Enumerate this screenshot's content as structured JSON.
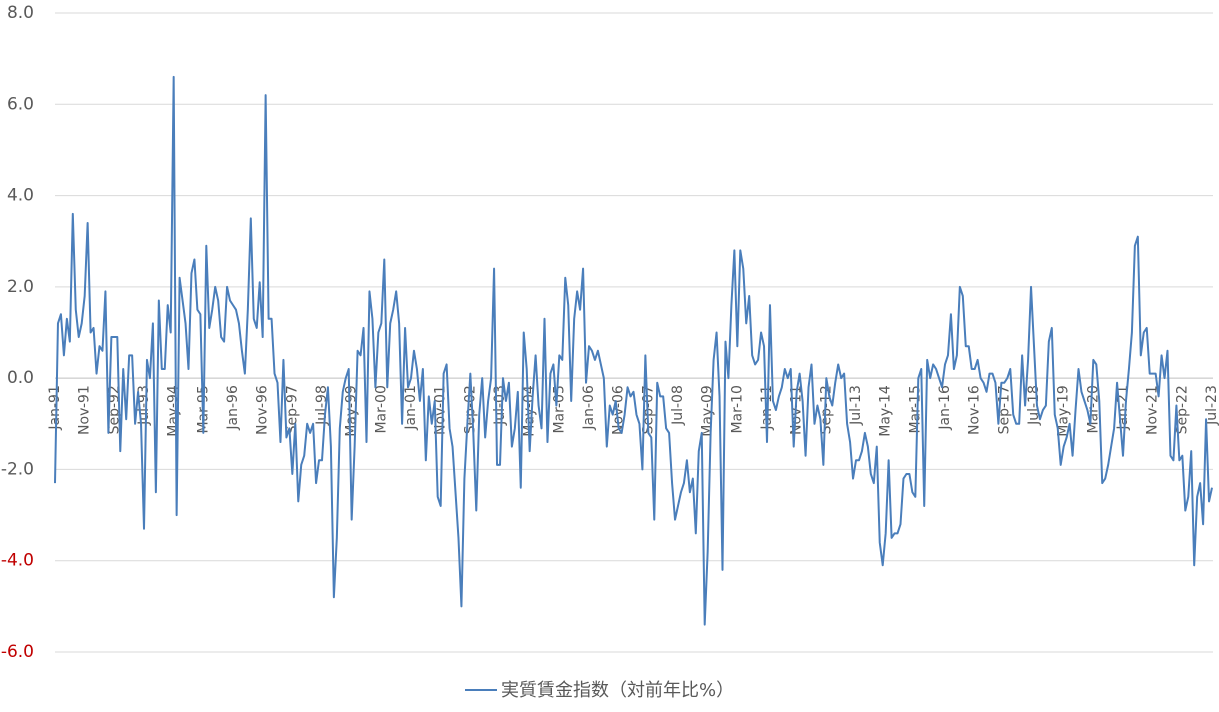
{
  "chart_data": {
    "type": "line",
    "categories": [
      "Jan-91",
      null,
      null,
      null,
      null,
      null,
      null,
      null,
      null,
      null,
      "Nov-91",
      null,
      null,
      null,
      null,
      null,
      null,
      null,
      null,
      null,
      "Sep-92",
      null,
      null,
      null,
      null,
      null,
      null,
      null,
      null,
      null,
      "Jul-93",
      null,
      null,
      null,
      null,
      null,
      null,
      null,
      null,
      null,
      "May-94",
      null,
      null,
      null,
      null,
      null,
      null,
      null,
      null,
      null,
      "Mar-95",
      null,
      null,
      null,
      null,
      null,
      null,
      null,
      null,
      null,
      "Jan-96",
      null,
      null,
      null,
      null,
      null,
      null,
      null,
      null,
      null,
      "Nov-96",
      null,
      null,
      null,
      null,
      null,
      null,
      null,
      null,
      null,
      "Sep-97",
      null,
      null,
      null,
      null,
      null,
      null,
      null,
      null,
      null,
      "Jul-98",
      null,
      null,
      null,
      null,
      null,
      null,
      null,
      null,
      null,
      "May-99",
      null,
      null,
      null,
      null,
      null,
      null,
      null,
      null,
      null,
      "Mar-00",
      null,
      null,
      null,
      null,
      null,
      null,
      null,
      null,
      null,
      "Jan-01",
      null,
      null,
      null,
      null,
      null,
      null,
      null,
      null,
      null,
      "Nov-01",
      null,
      null,
      null,
      null,
      null,
      null,
      null,
      null,
      null,
      "Sep-02",
      null,
      null,
      null,
      null,
      null,
      null,
      null,
      null,
      null,
      "Jul-03",
      null,
      null,
      null,
      null,
      null,
      null,
      null,
      null,
      null,
      "May-04",
      null,
      null,
      null,
      null,
      null,
      null,
      null,
      null,
      null,
      "Mar-05",
      null,
      null,
      null,
      null,
      null,
      null,
      null,
      null,
      null,
      "Jan-06",
      null,
      null,
      null,
      null,
      null,
      null,
      null,
      null,
      null,
      "Nov-06",
      null,
      null,
      null,
      null,
      null,
      null,
      null,
      null,
      null,
      "Sep-07",
      null,
      null,
      null,
      null,
      null,
      null,
      null,
      null,
      null,
      "Jul-08",
      null,
      null,
      null,
      null,
      null,
      null,
      null,
      null,
      null,
      "May-09",
      null,
      null,
      null,
      null,
      null,
      null,
      null,
      null,
      null,
      "Mar-10",
      null,
      null,
      null,
      null,
      null,
      null,
      null,
      null,
      null,
      "Jan-11",
      null,
      null,
      null,
      null,
      null,
      null,
      null,
      null,
      null,
      "Nov-11",
      null,
      null,
      null,
      null,
      null,
      null,
      null,
      null,
      null,
      "Sep-12",
      null,
      null,
      null,
      null,
      null,
      null,
      null,
      null,
      null,
      "Jul-13",
      null,
      null,
      null,
      null,
      null,
      null,
      null,
      null,
      null,
      "May-14",
      null,
      null,
      null,
      null,
      null,
      null,
      null,
      null,
      null,
      "Mar-15",
      null,
      null,
      null,
      null,
      null,
      null,
      null,
      null,
      null,
      "Jan-16",
      null,
      null,
      null,
      null,
      null,
      null,
      null,
      null,
      null,
      "Nov-16",
      null,
      null,
      null,
      null,
      null,
      null,
      null,
      null,
      null,
      "Sep-17",
      null,
      null,
      null,
      null,
      null,
      null,
      null,
      null,
      null,
      "Jul-18",
      null,
      null,
      null,
      null,
      null,
      null,
      null,
      null,
      null,
      "May-19",
      null,
      null,
      null,
      null,
      null,
      null,
      null,
      null,
      null,
      "Mar-20",
      null,
      null,
      null,
      null,
      null,
      null,
      null,
      null,
      null,
      "Jan-21",
      null,
      null,
      null,
      null,
      null,
      null,
      null,
      null,
      null,
      "Nov-21",
      null,
      null,
      null,
      null,
      null,
      null,
      null,
      null,
      null,
      "Sep-22",
      null,
      null,
      null,
      null,
      null,
      null,
      null,
      null,
      null,
      "Jul-23"
    ],
    "series": [
      {
        "name": "実質賃金指数（対前年比%）",
        "color": "#4a7ebb",
        "values": [
          -2.3,
          1.2,
          1.4,
          0.5,
          1.3,
          0.8,
          3.6,
          1.5,
          0.9,
          1.2,
          1.8,
          3.4,
          1.0,
          1.1,
          0.1,
          0.7,
          0.6,
          1.9,
          -1.2,
          0.9,
          0.9,
          0.9,
          -1.6,
          0.2,
          -0.9,
          0.5,
          0.5,
          -1.0,
          -0.3,
          -1.0,
          -3.3,
          0.4,
          0.0,
          1.2,
          -2.5,
          1.7,
          0.2,
          0.2,
          1.6,
          1.0,
          6.6,
          -3.0,
          2.2,
          1.7,
          1.2,
          0.2,
          2.3,
          2.6,
          1.5,
          1.4,
          -1.2,
          2.9,
          1.1,
          1.5,
          2.0,
          1.7,
          0.9,
          0.8,
          2.0,
          1.7,
          1.6,
          1.5,
          1.2,
          0.6,
          0.1,
          1.5,
          3.5,
          1.3,
          1.1,
          2.1,
          0.9,
          6.2,
          1.3,
          1.3,
          0.1,
          -0.1,
          -1.4,
          0.4,
          -1.3,
          -1.1,
          -2.1,
          -1.0,
          -2.7,
          -1.9,
          -1.7,
          -1.0,
          -1.2,
          -1.0,
          -2.3,
          -1.8,
          -1.8,
          -0.8,
          -0.2,
          -1.5,
          -4.8,
          -3.5,
          -1.1,
          -0.3,
          0.0,
          0.2,
          -3.1,
          -1.5,
          0.6,
          0.5,
          1.1,
          -1.4,
          1.9,
          1.3,
          -0.2,
          1.0,
          1.2,
          2.6,
          -0.2,
          1.2,
          1.5,
          1.9,
          1.2,
          -1.0,
          1.1,
          -0.2,
          0.0,
          0.6,
          0.2,
          -0.5,
          0.2,
          -1.8,
          -0.4,
          -1.0,
          -0.5,
          -2.6,
          -2.8,
          0.1,
          0.3,
          -1.1,
          -1.5,
          -2.5,
          -3.5,
          -5.0,
          -2.2,
          -1.0,
          0.1,
          -1.2,
          -2.9,
          -0.8,
          0.0,
          -1.3,
          -0.5,
          0.0,
          2.4,
          -1.9,
          -1.9,
          0.0,
          -0.5,
          -0.1,
          -1.5,
          -1.1,
          -0.3,
          -2.4,
          1.0,
          0.2,
          -1.6,
          -0.4,
          0.5,
          -0.6,
          -1.1,
          1.3,
          -1.4,
          0.1,
          0.3,
          -0.6,
          0.5,
          0.4,
          2.2,
          1.6,
          -0.5,
          1.3,
          1.9,
          1.5,
          2.4,
          -0.1,
          0.7,
          0.6,
          0.4,
          0.6,
          0.3,
          0.0,
          -1.5,
          -0.6,
          -0.8,
          -0.5,
          -1.1,
          -1.2,
          -0.8,
          -0.2,
          -0.4,
          -0.3,
          -0.8,
          -1.0,
          -2.0,
          0.5,
          -1.2,
          -1.3,
          -3.1,
          -0.1,
          -0.4,
          -0.4,
          -1.1,
          -1.2,
          -2.3,
          -3.1,
          -2.8,
          -2.5,
          -2.3,
          -1.8,
          -2.5,
          -2.2,
          -3.4,
          -1.6,
          -1.2,
          -5.4,
          -3.8,
          -1.2,
          0.4,
          1.0,
          -0.4,
          -4.2,
          0.8,
          0.0,
          1.6,
          2.8,
          0.7,
          2.8,
          2.4,
          1.2,
          1.8,
          0.5,
          0.3,
          0.4,
          1.0,
          0.7,
          -1.4,
          1.6,
          -0.5,
          -0.7,
          -0.4,
          -0.2,
          0.2,
          0.0,
          0.2,
          -1.5,
          -0.3,
          0.1,
          -0.5,
          -1.7,
          -0.2,
          0.3,
          -1.0,
          -0.6,
          -0.9,
          -1.9,
          0.0,
          -0.4,
          -0.6,
          -0.1,
          0.3,
          0.0,
          0.1,
          -1.0,
          -1.4,
          -2.2,
          -1.8,
          -1.8,
          -1.6,
          -1.2,
          -1.5,
          -2.1,
          -2.3,
          -1.5,
          -3.6,
          -4.1,
          -3.4,
          -1.8,
          -3.5,
          -3.4,
          -3.4,
          -3.2,
          -2.2,
          -2.1,
          -2.1,
          -2.5,
          -2.6,
          0.0,
          0.2,
          -2.8,
          0.4,
          0.0,
          0.3,
          0.2,
          0.0,
          -0.2,
          0.3,
          0.5,
          1.4,
          0.2,
          0.5,
          2.0,
          1.8,
          0.7,
          0.7,
          0.2,
          0.2,
          0.4,
          0.0,
          -0.1,
          -0.3,
          0.1,
          0.1,
          -0.1,
          -1.0,
          -0.1,
          -0.1,
          0.0,
          0.2,
          -0.8,
          -1.0,
          -1.0,
          0.5,
          -0.6,
          0.4,
          2.0,
          0.7,
          -0.6,
          -0.9,
          -0.7,
          -0.6,
          0.8,
          1.1,
          -0.8,
          -1.1,
          -1.9,
          -1.5,
          -1.3,
          -1.0,
          -1.7,
          -0.7,
          0.2,
          -0.3,
          -0.5,
          -0.7,
          -1.0,
          0.4,
          0.3,
          -0.5,
          -2.3,
          -2.2,
          -1.9,
          -1.5,
          -1.1,
          -0.1,
          -0.9,
          -1.7,
          -0.5,
          0.2,
          1.0,
          2.9,
          3.1,
          0.5,
          1.0,
          1.1,
          0.1,
          0.1,
          0.1,
          -0.4,
          0.5,
          0.0,
          0.6,
          -1.7,
          -1.8,
          -0.6,
          -1.8,
          -1.7,
          -2.9,
          -2.6,
          -1.6,
          -4.1,
          -2.6,
          -2.3,
          -3.2,
          -0.9,
          -2.7,
          -2.4
        ]
      }
    ],
    "ylim": [
      -6,
      8
    ],
    "yticks": [
      {
        "value": -6,
        "label": "-6.0",
        "color": "#c00000"
      },
      {
        "value": -4,
        "label": "-4.0",
        "color": "#c00000"
      },
      {
        "value": -2,
        "label": "-2.0",
        "color": "#595959"
      },
      {
        "value": 0,
        "label": "0.0",
        "color": "#595959"
      },
      {
        "value": 2,
        "label": "2.0",
        "color": "#595959"
      },
      {
        "value": 4,
        "label": "4.0",
        "color": "#595959"
      },
      {
        "value": 6,
        "label": "6.0",
        "color": "#595959"
      },
      {
        "value": 8,
        "label": "8.0",
        "color": "#595959"
      }
    ],
    "grid": true,
    "legend": "bottom"
  }
}
